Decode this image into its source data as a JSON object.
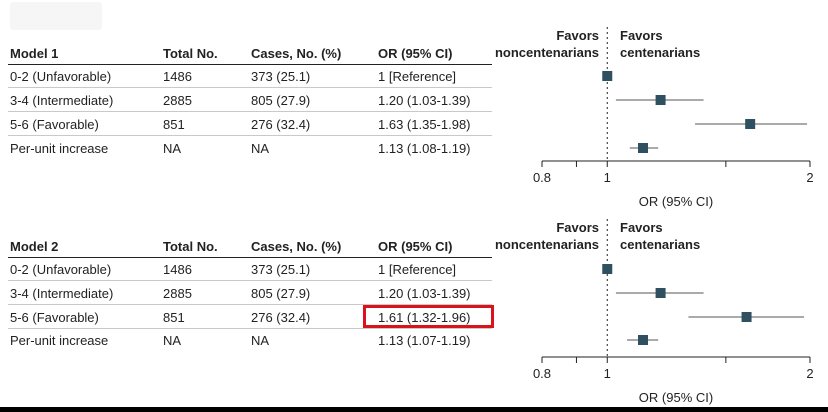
{
  "headers": {
    "total": "Total No.",
    "cases": "Cases, No. (%)",
    "or": "OR (95% CI)"
  },
  "favors": {
    "left_line1": "Favors",
    "left_line2": "noncentenarians",
    "right_line1": "Favors",
    "right_line2": "centenarians"
  },
  "panels": [
    {
      "model": "Model 1",
      "rows": [
        {
          "label": "0-2 (Unfavorable)",
          "total": "1486",
          "cases": "373 (25.1)",
          "or": "1 [Reference]"
        },
        {
          "label": "3-4 (Intermediate)",
          "total": "2885",
          "cases": "805 (27.9)",
          "or": "1.20 (1.03-1.39)"
        },
        {
          "label": "5-6 (Favorable)",
          "total": "851",
          "cases": "276 (32.4)",
          "or": "1.63 (1.35-1.98)"
        },
        {
          "label": "Per-unit increase",
          "total": "NA",
          "cases": "NA",
          "or": "1.13 (1.08-1.19)"
        }
      ]
    },
    {
      "model": "Model 2",
      "rows": [
        {
          "label": "0-2 (Unfavorable)",
          "total": "1486",
          "cases": "373 (25.1)",
          "or": "1 [Reference]"
        },
        {
          "label": "3-4 (Intermediate)",
          "total": "2885",
          "cases": "805 (27.9)",
          "or": "1.20 (1.03-1.39)"
        },
        {
          "label": "5-6 (Favorable)",
          "total": "851",
          "cases": "276 (32.4)",
          "or": "1.61 (1.32-1.96)"
        },
        {
          "label": "Per-unit increase",
          "total": "NA",
          "cases": "NA",
          "or": "1.13 (1.07-1.19)"
        }
      ]
    }
  ],
  "highlight": {
    "panel": 1,
    "row": 2,
    "color": "#d8131b"
  },
  "colors": {
    "marker": "#2f5060",
    "ci_line": "#777777",
    "reference_line": "#222222"
  },
  "chart_data": [
    {
      "type": "scatter",
      "subtype": "forest-plot",
      "title": "Model 1",
      "xlabel": "OR (95% CI)",
      "x_scale": "log",
      "xlim": [
        0.8,
        2
      ],
      "xticks": [
        0.8,
        1,
        2
      ],
      "xticks_minor": [
        0.9,
        1.5
      ],
      "reference_value": 1,
      "categories": [
        "0-2 (Unfavorable)",
        "3-4 (Intermediate)",
        "5-6 (Favorable)",
        "Per-unit increase"
      ],
      "values": [
        1,
        1.2,
        1.63,
        1.13
      ],
      "ci_low": [
        null,
        1.03,
        1.35,
        1.08
      ],
      "ci_high": [
        null,
        1.39,
        1.98,
        1.19
      ]
    },
    {
      "type": "scatter",
      "subtype": "forest-plot",
      "title": "Model 2",
      "xlabel": "OR (95% CI)",
      "x_scale": "log",
      "xlim": [
        0.8,
        2
      ],
      "xticks": [
        0.8,
        1,
        2
      ],
      "xticks_minor": [
        0.9,
        1.5
      ],
      "reference_value": 1,
      "categories": [
        "0-2 (Unfavorable)",
        "3-4 (Intermediate)",
        "5-6 (Favorable)",
        "Per-unit increase"
      ],
      "values": [
        1,
        1.2,
        1.61,
        1.13
      ],
      "ci_low": [
        null,
        1.03,
        1.32,
        1.07
      ],
      "ci_high": [
        null,
        1.39,
        1.96,
        1.19
      ]
    }
  ]
}
